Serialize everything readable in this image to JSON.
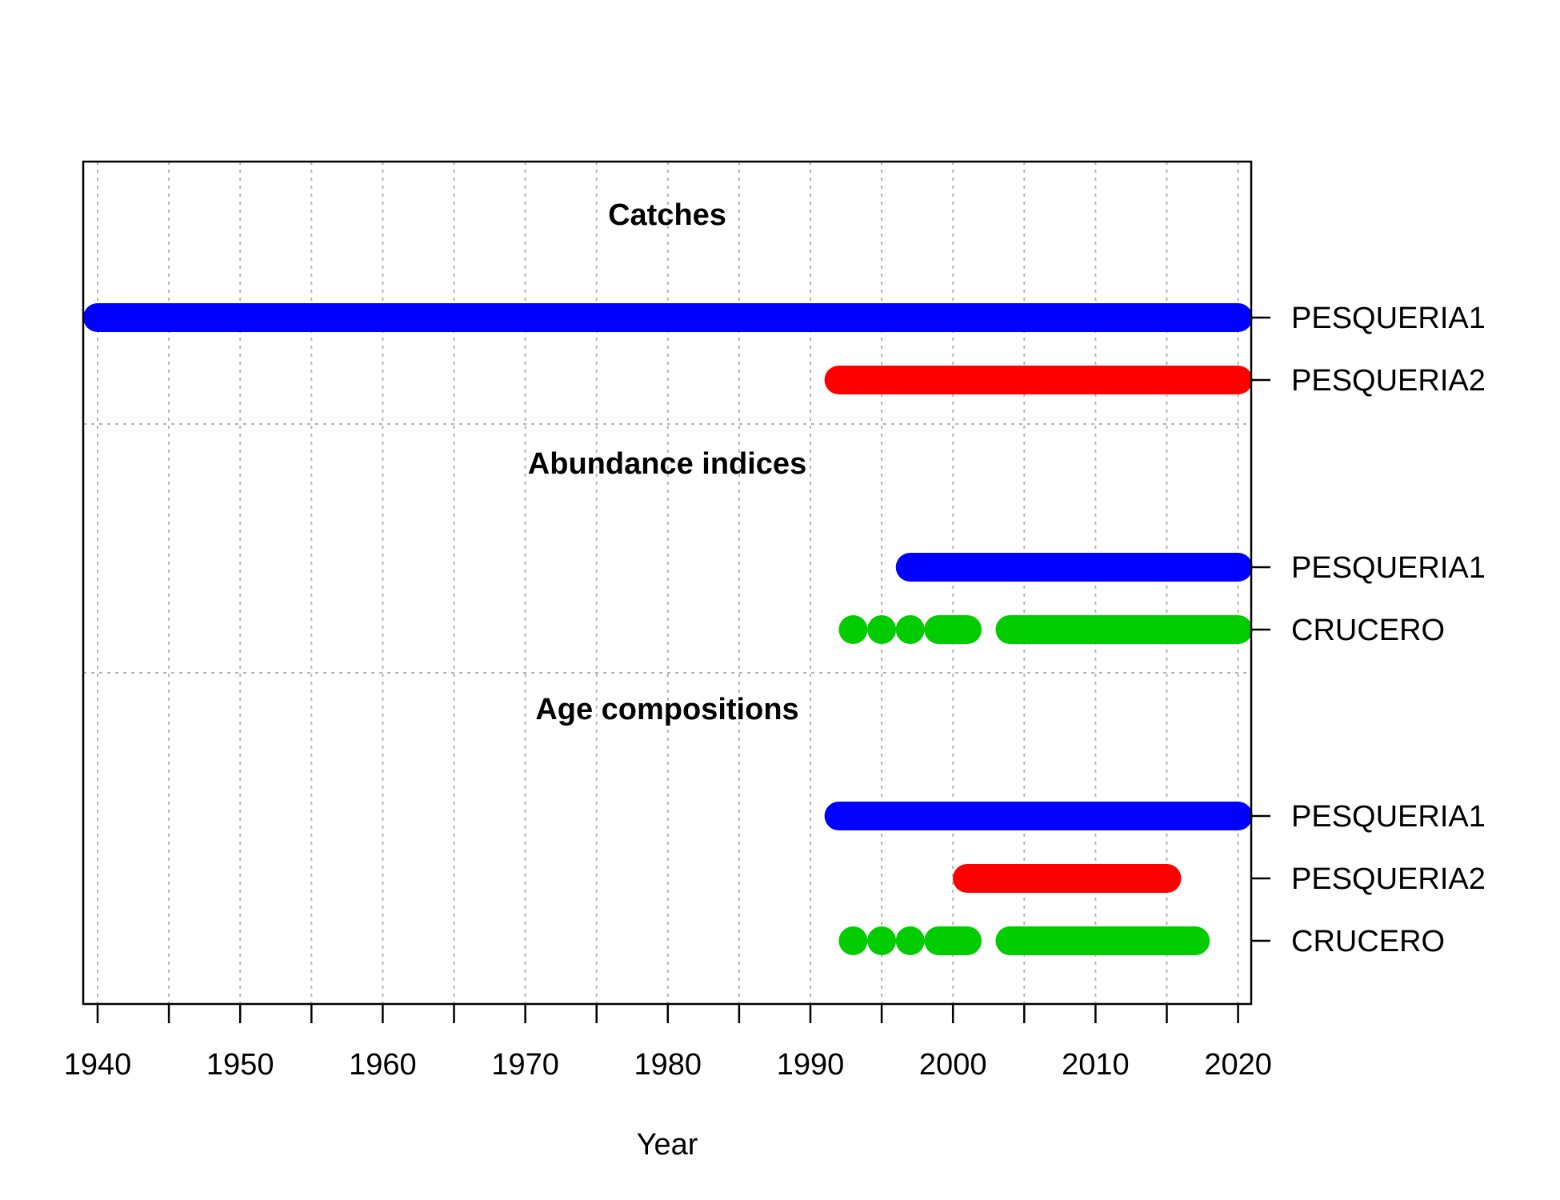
{
  "chart_data": {
    "type": "timeline",
    "title": "",
    "xlabel": "Year",
    "ylabel": "",
    "xlim": [
      1939,
      2021
    ],
    "xticks_major": [
      1940,
      1950,
      1960,
      1970,
      1980,
      1990,
      2000,
      2010,
      2020
    ],
    "xticks_minor": [
      1945,
      1955,
      1965,
      1975,
      1985,
      1995,
      2005,
      2015
    ],
    "grid": true,
    "colors": {
      "PESQUERIA1": "#0000FF",
      "PESQUERIA2": "#FF0000",
      "CRUCERO": "#00CC00"
    },
    "groups": [
      {
        "title": "Catches",
        "series": [
          {
            "name": "PESQUERIA1",
            "years": [
              [
                1940,
                2020
              ]
            ]
          },
          {
            "name": "PESQUERIA2",
            "years": [
              [
                1992,
                2020
              ]
            ]
          }
        ]
      },
      {
        "title": "Abundance indices",
        "series": [
          {
            "name": "PESQUERIA1",
            "years": [
              [
                1997,
                2020
              ]
            ]
          },
          {
            "name": "CRUCERO",
            "years": [
              [
                1993,
                1993
              ],
              [
                1995,
                1995
              ],
              [
                1997,
                1997
              ],
              [
                1999,
                2001
              ],
              [
                2004,
                2020
              ]
            ]
          }
        ]
      },
      {
        "title": "Age compositions",
        "series": [
          {
            "name": "PESQUERIA1",
            "years": [
              [
                1992,
                2020
              ]
            ]
          },
          {
            "name": "PESQUERIA2",
            "years": [
              [
                2001,
                2015
              ]
            ]
          },
          {
            "name": "CRUCERO",
            "years": [
              [
                1993,
                1993
              ],
              [
                1995,
                1995
              ],
              [
                1997,
                1997
              ],
              [
                1999,
                2001
              ],
              [
                2004,
                2017
              ]
            ]
          }
        ]
      }
    ]
  }
}
